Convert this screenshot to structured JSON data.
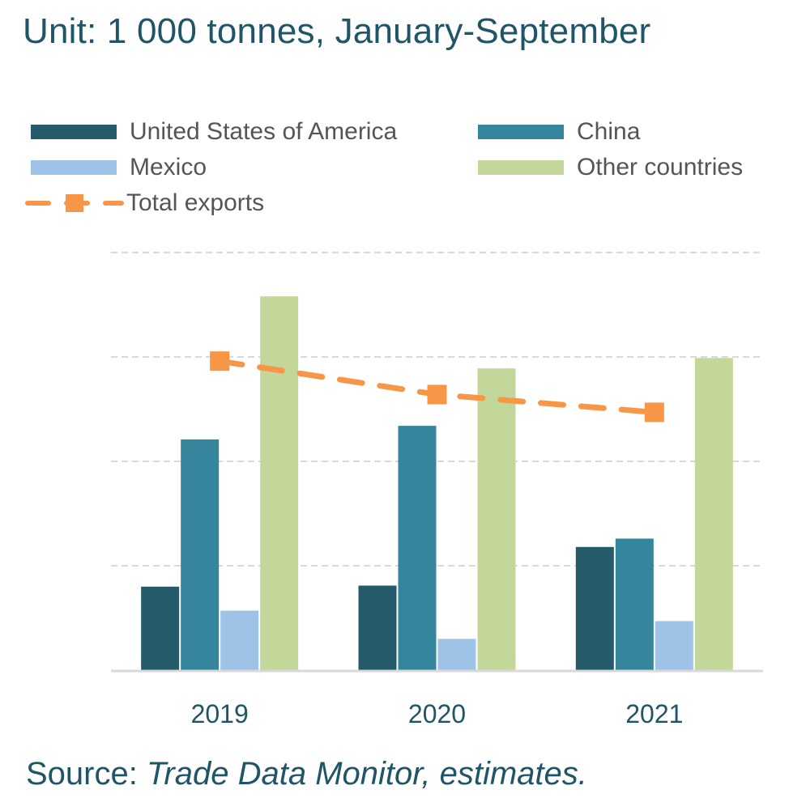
{
  "title": "Unit: 1 000 tonnes, January-September",
  "source_prefix": "Source: ",
  "source_italic": "Trade Data Monitor, estimates.",
  "colors": {
    "usa": "#245a69",
    "china": "#35869d",
    "mexico": "#9fc3e6",
    "other": "#c4d79b",
    "total": "#f79646",
    "grid": "#d9d9d9",
    "axis": "#d9d9d9"
  },
  "chart_data": {
    "type": "bar",
    "categories": [
      "2019",
      "2020",
      "2021"
    ],
    "series": [
      {
        "name": "United States of America",
        "values": [
          80,
          81,
          118
        ]
      },
      {
        "name": "China",
        "values": [
          221,
          234,
          126
        ]
      },
      {
        "name": "Mexico",
        "values": [
          57,
          30,
          47
        ]
      },
      {
        "name": "Other countries",
        "values": [
          358,
          289,
          299
        ]
      }
    ],
    "line_series": {
      "name": "Total exports",
      "values": [
        296,
        264,
        247
      ]
    },
    "ylim": [
      0,
      400
    ],
    "gridlines": [
      100,
      200,
      300,
      400
    ],
    "ytick_labels": false,
    "legend_position": "top"
  }
}
